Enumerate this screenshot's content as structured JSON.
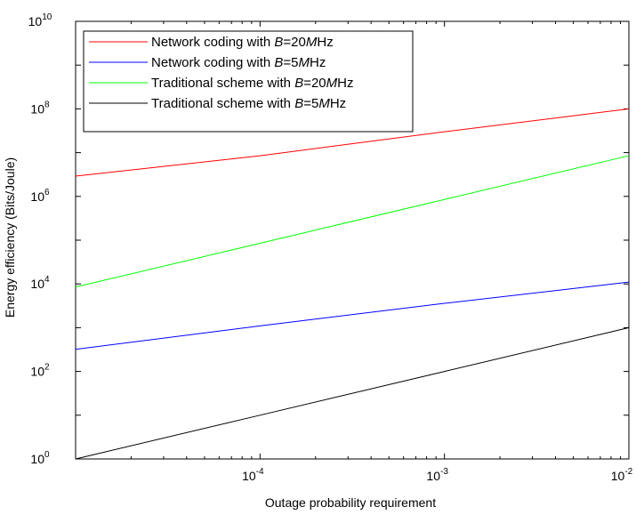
{
  "chart_data": {
    "type": "line",
    "xlabel": "Outage probability requirement",
    "ylabel": "Energy efficiency (Bits/Joule)",
    "x_scale": "log",
    "y_scale": "log",
    "xlim": [
      1e-05,
      0.01
    ],
    "ylim": [
      1,
      10000000000
    ],
    "x_ticks": [
      {
        "value": 0.0001,
        "base": "10",
        "exp": "-4"
      },
      {
        "value": 0.001,
        "base": "10",
        "exp": "-3"
      },
      {
        "value": 0.01,
        "base": "10",
        "exp": "-2"
      }
    ],
    "y_ticks": [
      {
        "value": 1,
        "base": "10",
        "exp": "0"
      },
      {
        "value": 100,
        "base": "10",
        "exp": "2"
      },
      {
        "value": 10000,
        "base": "10",
        "exp": "4"
      },
      {
        "value": 1000000,
        "base": "10",
        "exp": "6"
      },
      {
        "value": 100000000,
        "base": "10",
        "exp": "8"
      },
      {
        "value": 10000000000,
        "base": "10",
        "exp": "10"
      }
    ],
    "grid": false,
    "legend_position": "top-left",
    "series": [
      {
        "name": "Network coding with B=20MHz",
        "legend": {
          "prefix": "Network coding with ",
          "var": "B",
          "mid": "=20",
          "unit_var": "M",
          "suffix": "Hz"
        },
        "color": "#ff0000",
        "x": [
          1e-05,
          0.0001,
          0.001,
          0.01
        ],
        "y": [
          2900000,
          8500000,
          30000000,
          100000000
        ]
      },
      {
        "name": "Network coding with B=5MHz",
        "legend": {
          "prefix": "Network coding with ",
          "var": "B",
          "mid": "=5",
          "unit_var": "M",
          "suffix": "Hz"
        },
        "color": "#0000ff",
        "x": [
          1e-05,
          0.0001,
          0.001,
          0.01
        ],
        "y": [
          320,
          1100,
          3600,
          11000
        ]
      },
      {
        "name": "Traditional scheme with B=20MHz",
        "legend": {
          "prefix": "Traditional scheme with ",
          "var": "B",
          "mid": "=20",
          "unit_var": "M",
          "suffix": "Hz"
        },
        "color": "#00ff00",
        "x": [
          1e-05,
          0.0001,
          0.001,
          0.01
        ],
        "y": [
          8500,
          85000,
          850000,
          8500000
        ]
      },
      {
        "name": "Traditional scheme with B=5MHz",
        "legend": {
          "prefix": "Traditional scheme with ",
          "var": "B",
          "mid": "=5",
          "unit_var": "M",
          "suffix": "Hz"
        },
        "color": "#000000",
        "x": [
          1e-05,
          0.0001,
          0.001,
          0.01
        ],
        "y": [
          1,
          10,
          100,
          1000
        ]
      }
    ]
  }
}
